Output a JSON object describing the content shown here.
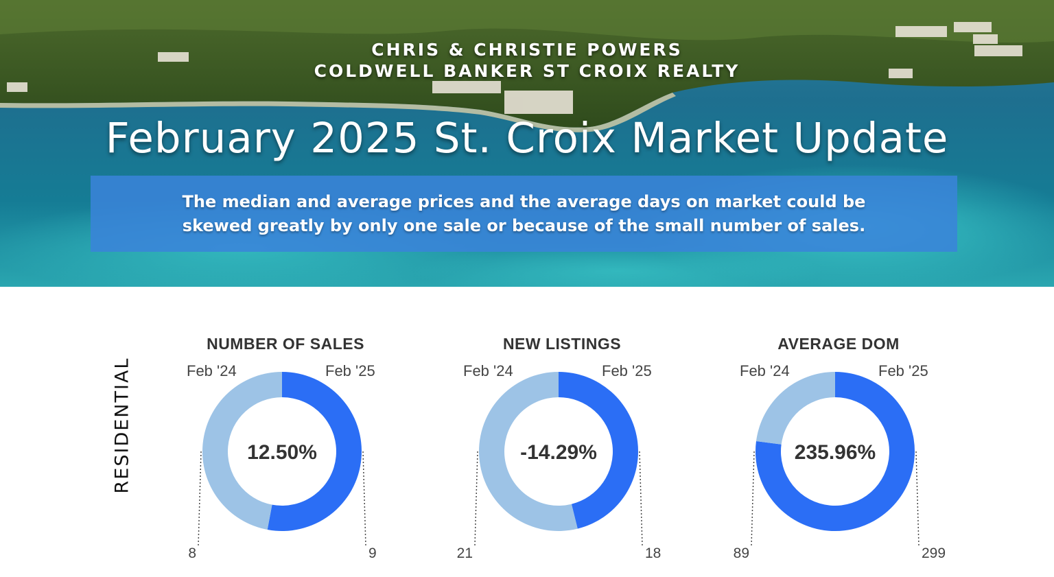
{
  "header": {
    "agent_name": "CHRIS & CHRISTIE POWERS",
    "brokerage": "COLDWELL BANKER ST CROIX REALTY",
    "title": "February 2025 St. Croix Market Update",
    "disclaimer": "The median and average prices and  the average days on market could be skewed greatly by only one sale or because of the small number of sales."
  },
  "section_label": "RESIDENTIAL",
  "colors": {
    "previous": "#9dc3e6",
    "current": "#2b6ef5",
    "banner": "#3a84da"
  },
  "chart_data": [
    {
      "type": "pie",
      "title": "NUMBER OF SALES",
      "categories": [
        "Feb '24",
        "Feb '25"
      ],
      "values": [
        8,
        9
      ],
      "center_label": "12.50%"
    },
    {
      "type": "pie",
      "title": "NEW LISTINGS",
      "categories": [
        "Feb '24",
        "Feb '25"
      ],
      "values": [
        21,
        18
      ],
      "center_label": "-14.29%"
    },
    {
      "type": "pie",
      "title": "AVERAGE DOM",
      "categories": [
        "Feb '24",
        "Feb '25"
      ],
      "values": [
        89,
        299
      ],
      "center_label": "235.96%"
    }
  ]
}
